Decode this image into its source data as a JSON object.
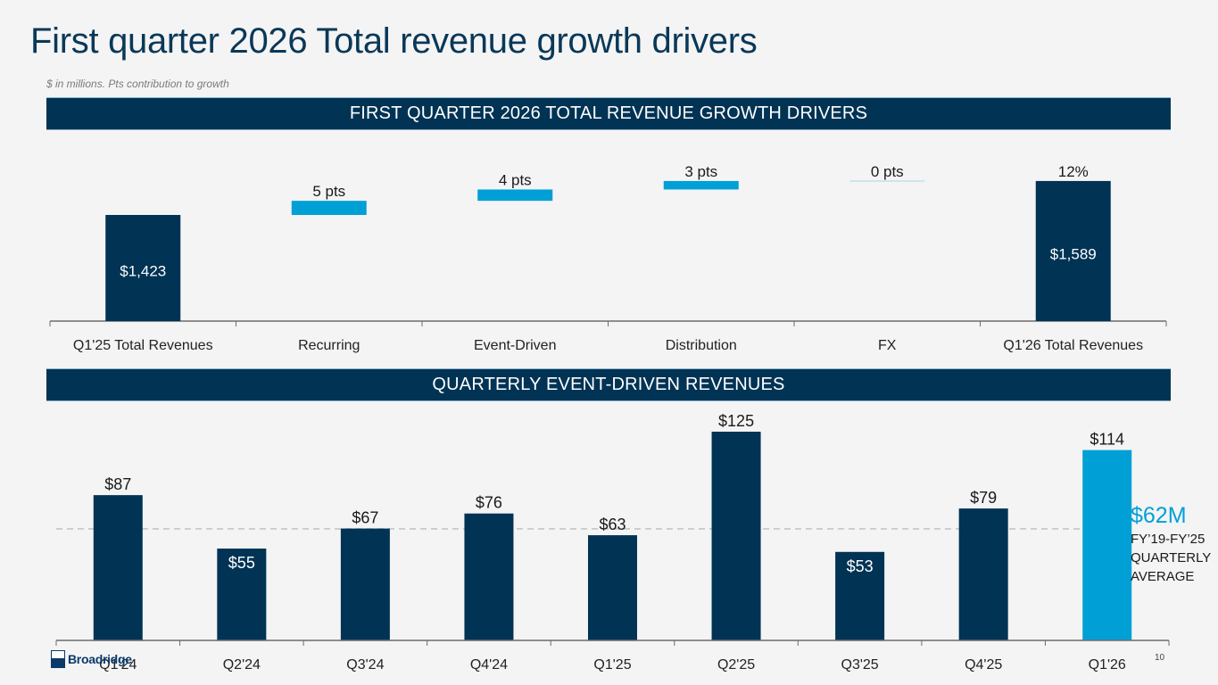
{
  "slide": {
    "title": "First quarter 2026 Total revenue growth drivers",
    "subtitle": "$ in millions. Pts contribution to growth",
    "page_number": "10",
    "logo_text": "Broadridge",
    "logo_icon": "broadridge-logo-icon"
  },
  "colors": {
    "navy": "#003354",
    "accent_blue": "#00a0d6",
    "background": "#f4f4f4",
    "average_line": "#b8bec4"
  },
  "chart_data": [
    {
      "type": "bar",
      "subtype": "waterfall",
      "title": "FIRST QUARTER 2026 TOTAL REVENUE GROWTH DRIVERS",
      "categories": [
        "Q1'25 Total Revenues",
        "Recurring",
        "Event-Driven",
        "Distribution",
        "FX",
        "Q1'26 Total Revenues"
      ],
      "values": [
        1423,
        5,
        4,
        3,
        0,
        1589
      ],
      "value_units": [
        "$M",
        "pts",
        "pts",
        "pts",
        "pts",
        "$M"
      ],
      "bar_kinds": [
        "total",
        "delta",
        "delta",
        "delta",
        "delta",
        "total"
      ],
      "labels": [
        "$1,423",
        "5 pts",
        "4 pts",
        "3 pts",
        "0 pts",
        "$1,589"
      ],
      "growth_label": "12%",
      "xlabel": "",
      "ylabel": "",
      "grid": false,
      "legend": "none"
    },
    {
      "type": "bar",
      "title": "QUARTERLY EVENT-DRIVEN REVENUES",
      "categories": [
        "Q1'24",
        "Q2'24",
        "Q3'24",
        "Q4'24",
        "Q1'25",
        "Q2'25",
        "Q3'25",
        "Q4'25",
        "Q1'26"
      ],
      "values": [
        87,
        55,
        67,
        76,
        63,
        125,
        53,
        79,
        114
      ],
      "labels": [
        "$87",
        "$55",
        "$67",
        "$76",
        "$63",
        "$125",
        "$53",
        "$79",
        "$114"
      ],
      "highlight_index": 8,
      "label_inside": [
        false,
        true,
        false,
        false,
        false,
        false,
        true,
        false,
        false
      ],
      "reference_line": {
        "value": 62,
        "label": "$62M",
        "description": [
          "FY’19-FY’25",
          "QUARTERLY",
          "AVERAGE"
        ]
      },
      "ylim": [
        0,
        130
      ],
      "xlabel": "",
      "ylabel": "",
      "grid": false,
      "legend": "none"
    }
  ]
}
